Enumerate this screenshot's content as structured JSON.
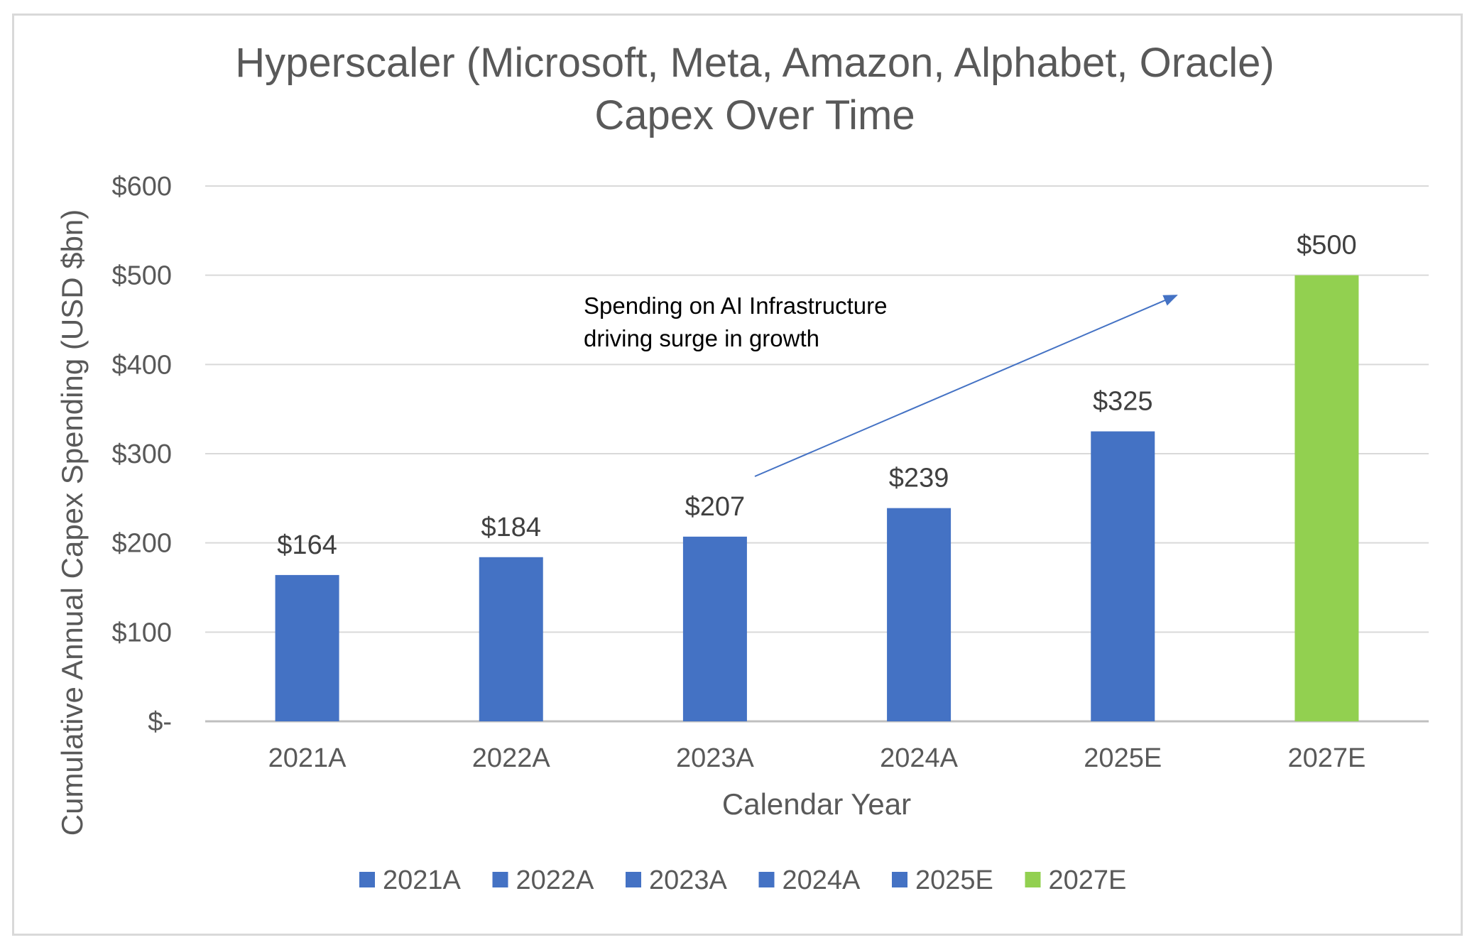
{
  "chart_data": {
    "type": "bar",
    "title_lines": [
      "Hyperscaler (Microsoft, Meta, Amazon, Alphabet, Oracle)",
      "Capex Over Time"
    ],
    "xlabel": "Calendar Year",
    "ylabel": "Cumulative Annual Capex Spending (USD $bn)",
    "categories": [
      "2021A",
      "2022A",
      "2023A",
      "2024A",
      "2025E",
      "2027E"
    ],
    "values": [
      164,
      184,
      207,
      239,
      325,
      500
    ],
    "data_labels": [
      "$164",
      "$184",
      "$207",
      "$239",
      "$325",
      "$500"
    ],
    "bar_colors": [
      "#4472c4",
      "#4472c4",
      "#4472c4",
      "#4472c4",
      "#4472c4",
      "#92d050"
    ],
    "ylim": [
      0,
      600
    ],
    "yticks": [
      0,
      100,
      200,
      300,
      400,
      500,
      600
    ],
    "ytick_labels": [
      "$-",
      "$100",
      "$200",
      "$300",
      "$400",
      "$500",
      "$600"
    ],
    "grid": true,
    "legend": {
      "placement": "bottom",
      "entries": [
        "2021A",
        "2022A",
        "2023A",
        "2024A",
        "2025E",
        "2027E"
      ]
    },
    "annotation": {
      "lines": [
        "Spending on AI Infrastructure",
        "driving surge in growth"
      ],
      "arrow_color": "#4472c4"
    },
    "colors": {
      "gridline": "#d9d9d9",
      "axis_line": "#bfbfbf",
      "text": "#595959"
    }
  }
}
